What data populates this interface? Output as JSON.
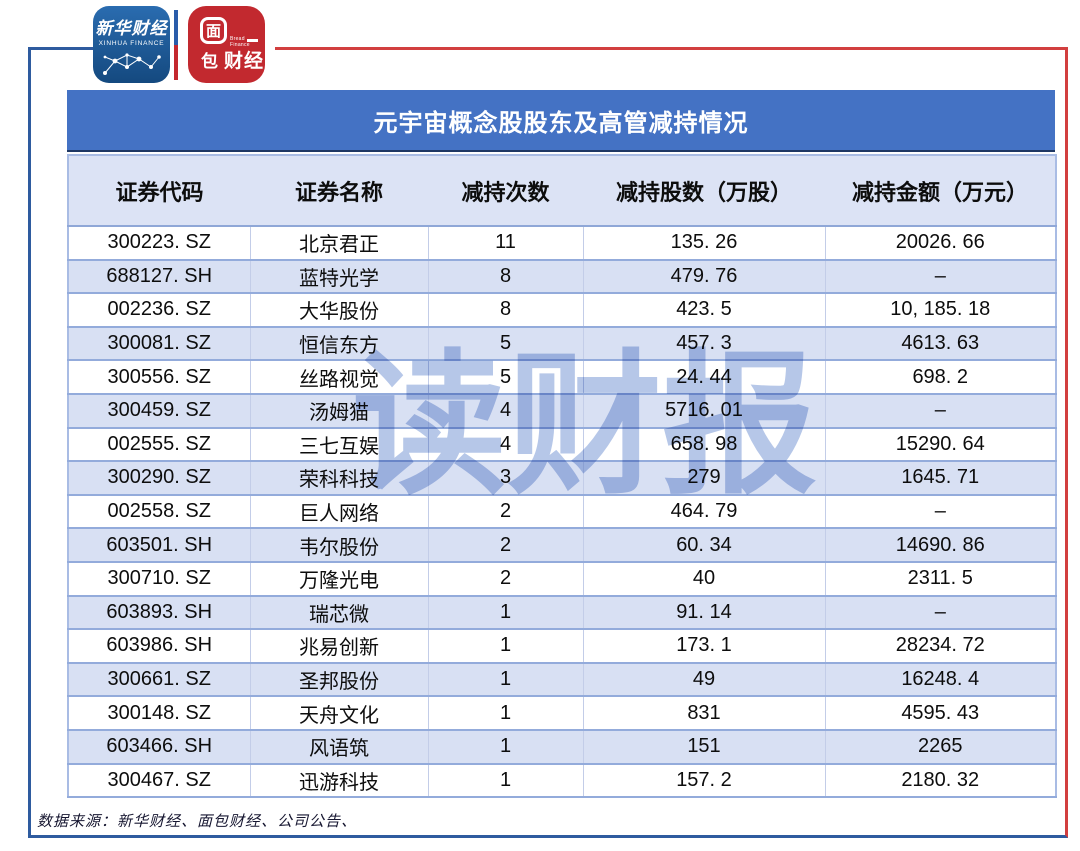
{
  "branding": {
    "xinhua_cn": "新华财经",
    "xinhua_en": "XINHUA FINANCE",
    "bread_mian": "面",
    "bread_bao": "包",
    "bread_cn": "财经",
    "bread_en": "Bread Finance"
  },
  "table": {
    "title": "元宇宙概念股股东及高管减持情况",
    "columns": [
      "证券代码",
      "证券名称",
      "减持次数",
      "减持股数（万股）",
      "减持金额（万元）"
    ],
    "rows": [
      {
        "code": "300223. SZ",
        "name": "北京君正",
        "times": "11",
        "shares": "135. 26",
        "amount": "20026. 66"
      },
      {
        "code": "688127. SH",
        "name": "蓝特光学",
        "times": "8",
        "shares": "479. 76",
        "amount": "–"
      },
      {
        "code": "002236. SZ",
        "name": "大华股份",
        "times": "8",
        "shares": "423. 5",
        "amount": "10, 185. 18"
      },
      {
        "code": "300081. SZ",
        "name": "恒信东方",
        "times": "5",
        "shares": "457. 3",
        "amount": "4613. 63"
      },
      {
        "code": "300556. SZ",
        "name": "丝路视觉",
        "times": "5",
        "shares": "24. 44",
        "amount": "698. 2"
      },
      {
        "code": "300459. SZ",
        "name": "汤姆猫",
        "times": "4",
        "shares": "5716. 01",
        "amount": "–"
      },
      {
        "code": "002555. SZ",
        "name": "三七互娱",
        "times": "4",
        "shares": "658. 98",
        "amount": "15290. 64"
      },
      {
        "code": "300290. SZ",
        "name": "荣科科技",
        "times": "3",
        "shares": "279",
        "amount": "1645. 71"
      },
      {
        "code": "002558. SZ",
        "name": "巨人网络",
        "times": "2",
        "shares": "464. 79",
        "amount": "–"
      },
      {
        "code": "603501. SH",
        "name": "韦尔股份",
        "times": "2",
        "shares": "60. 34",
        "amount": "14690. 86"
      },
      {
        "code": "300710. SZ",
        "name": "万隆光电",
        "times": "2",
        "shares": "40",
        "amount": "2311. 5"
      },
      {
        "code": "603893. SH",
        "name": "瑞芯微",
        "times": "1",
        "shares": "91. 14",
        "amount": "–"
      },
      {
        "code": "603986. SH",
        "name": "兆易创新",
        "times": "1",
        "shares": "173. 1",
        "amount": "28234. 72"
      },
      {
        "code": "300661. SZ",
        "name": "圣邦股份",
        "times": "1",
        "shares": "49",
        "amount": "16248. 4"
      },
      {
        "code": "300148. SZ",
        "name": "天舟文化",
        "times": "1",
        "shares": "831",
        "amount": "4595. 43"
      },
      {
        "code": "603466. SH",
        "name": "风语筑",
        "times": "1",
        "shares": "151",
        "amount": "2265"
      },
      {
        "code": "300467. SZ",
        "name": "迅游科技",
        "times": "1",
        "shares": "157. 2",
        "amount": "2180. 32"
      }
    ]
  },
  "watermark": "读财报",
  "footer": {
    "source": "数据来源：新华财经、面包财经、公司公告、"
  },
  "colors": {
    "title_bar": "#4472c4",
    "header_row": "#dce3f5",
    "alt_row": "#d8e0f3",
    "frame_blue": "#2e5b9f",
    "frame_red": "#d23f3f",
    "xinhua_blue": "#1d5a9e",
    "bread_red": "#c2292f",
    "watermark_blue": "#b6c7e8"
  }
}
